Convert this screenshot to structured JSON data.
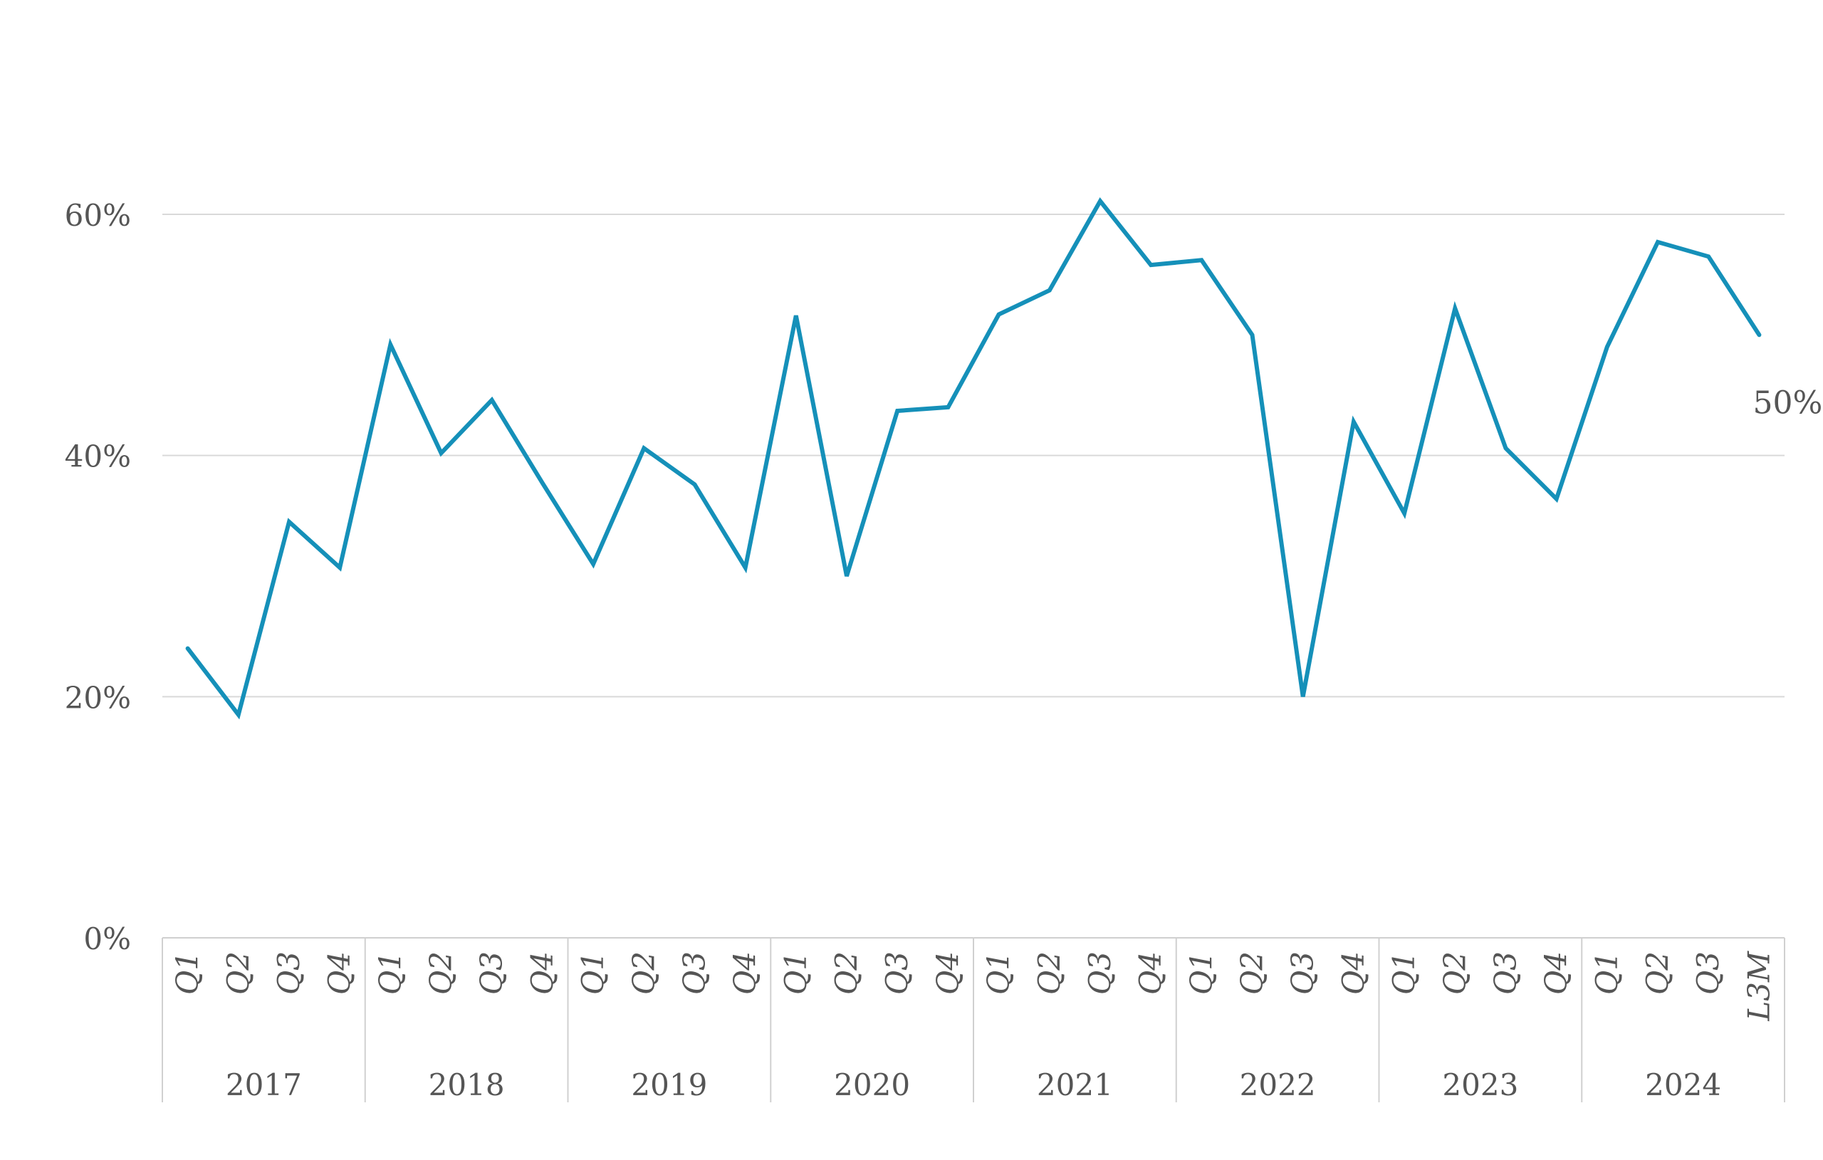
{
  "chart_data": {
    "type": "line",
    "title": "",
    "xlabel": "",
    "ylabel": "",
    "ylim": [
      0,
      0.6
    ],
    "y_ticks": [
      {
        "value": 0,
        "label": "0%"
      },
      {
        "value": 0.2,
        "label": "20%"
      },
      {
        "value": 0.4,
        "label": "40%"
      },
      {
        "value": 0.6,
        "label": "60%"
      }
    ],
    "grid": true,
    "legend": "none",
    "colors": {
      "line": "#1590b9",
      "grid": "#d9d9d9",
      "axis": "#d0d0d0",
      "text": "#555555"
    },
    "categories": [
      "Q1",
      "Q2",
      "Q3",
      "Q4",
      "Q1",
      "Q2",
      "Q3",
      "Q4",
      "Q1",
      "Q2",
      "Q3",
      "Q4",
      "Q1",
      "Q2",
      "Q3",
      "Q4",
      "Q1",
      "Q2",
      "Q3",
      "Q4",
      "Q1",
      "Q2",
      "Q3",
      "Q4",
      "Q1",
      "Q2",
      "Q3",
      "Q4",
      "Q1",
      "Q2",
      "Q3",
      "L3M"
    ],
    "groups": [
      {
        "label": "2017",
        "size": 4
      },
      {
        "label": "2018",
        "size": 4
      },
      {
        "label": "2019",
        "size": 4
      },
      {
        "label": "2020",
        "size": 4
      },
      {
        "label": "2021",
        "size": 4
      },
      {
        "label": "2022",
        "size": 4
      },
      {
        "label": "2023",
        "size": 4
      },
      {
        "label": "2024",
        "size": 4
      }
    ],
    "series": [
      {
        "values": [
          0.24,
          0.185,
          0.345,
          0.307,
          0.492,
          0.402,
          0.446,
          0.377,
          0.31,
          0.406,
          0.376,
          0.307,
          0.516,
          0.3,
          0.437,
          0.44,
          0.517,
          0.537,
          0.611,
          0.558,
          0.562,
          0.5,
          0.2,
          0.428,
          0.352,
          0.522,
          0.406,
          0.364,
          0.49,
          0.577,
          0.565,
          0.5
        ]
      }
    ],
    "annotations": [
      {
        "label": "50%",
        "point_index": 31
      }
    ]
  }
}
